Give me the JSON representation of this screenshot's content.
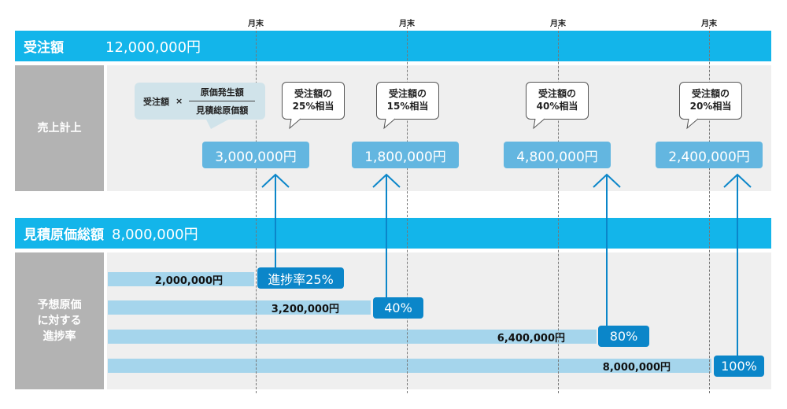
{
  "month_end_label": "月末",
  "order_header": {
    "label": "受注額",
    "amount": "12,000,000円"
  },
  "sales_section": {
    "label": "売上計上",
    "formula": {
      "left": "受注額",
      "operator": "×",
      "numerator": "原価発生額",
      "denominator": "見積総原価額"
    },
    "callouts": [
      {
        "line1": "受注額の",
        "line2": "25%相当",
        "amount": "3,000,000円"
      },
      {
        "line1": "受注額の",
        "line2": "15%相当",
        "amount": "1,800,000円"
      },
      {
        "line1": "受注額の",
        "line2": "40%相当",
        "amount": "4,800,000円"
      },
      {
        "line1": "受注額の",
        "line2": "20%相当",
        "amount": "2,400,000円"
      }
    ]
  },
  "cost_header": {
    "label": "見積原価総額",
    "amount": "8,000,000円"
  },
  "progress_section": {
    "label_lines": [
      "予想原価",
      "に対する",
      "進捗率"
    ],
    "bars": [
      {
        "cost": "2,000,000円",
        "progress": "進捗率25%",
        "fraction": 0.25
      },
      {
        "cost": "3,200,000円",
        "progress": "40%",
        "fraction": 0.4
      },
      {
        "cost": "6,400,000円",
        "progress": "80%",
        "fraction": 0.8
      },
      {
        "cost": "8,000,000円",
        "progress": "100%",
        "fraction": 1.0
      }
    ]
  },
  "colors": {
    "header": "#13b5ea",
    "amount_box": "#63b6e0",
    "progress_box": "#0b86c9",
    "bar": "#a5d5ec",
    "label_gray": "#b3b3b3"
  }
}
